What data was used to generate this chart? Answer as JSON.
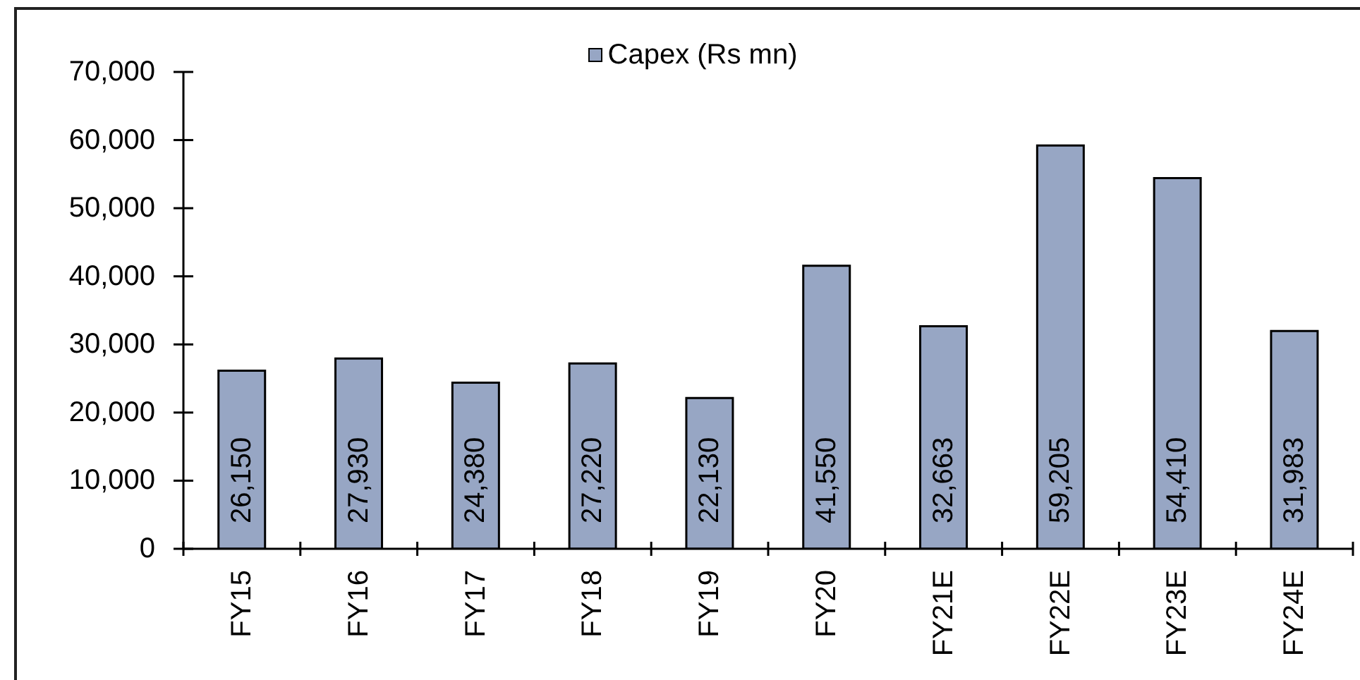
{
  "chart_data": {
    "type": "bar",
    "categories": [
      "FY15",
      "FY16",
      "FY17",
      "FY18",
      "FY19",
      "FY20",
      "FY21E",
      "FY22E",
      "FY23E",
      "FY24E"
    ],
    "series": [
      {
        "name": "Capex (Rs mn)",
        "color": "#97a6c4",
        "values": [
          26150,
          27930,
          24380,
          27220,
          22130,
          41550,
          32663,
          59205,
          54410,
          31983
        ],
        "value_labels": [
          "26,150",
          "27,930",
          "24,380",
          "27,220",
          "22,130",
          "41,550",
          "32,663",
          "59,205",
          "54,410",
          "31,983"
        ]
      }
    ],
    "ylim": [
      0,
      70000
    ],
    "yticks": [
      {
        "value": 0,
        "label": "0"
      },
      {
        "value": 10000,
        "label": "10,000"
      },
      {
        "value": 20000,
        "label": "20,000"
      },
      {
        "value": 30000,
        "label": "30,000"
      },
      {
        "value": 40000,
        "label": "40,000"
      },
      {
        "value": 50000,
        "label": "50,000"
      },
      {
        "value": 60000,
        "label": "60,000"
      },
      {
        "value": 70000,
        "label": "70,000"
      }
    ],
    "legend": "top"
  }
}
